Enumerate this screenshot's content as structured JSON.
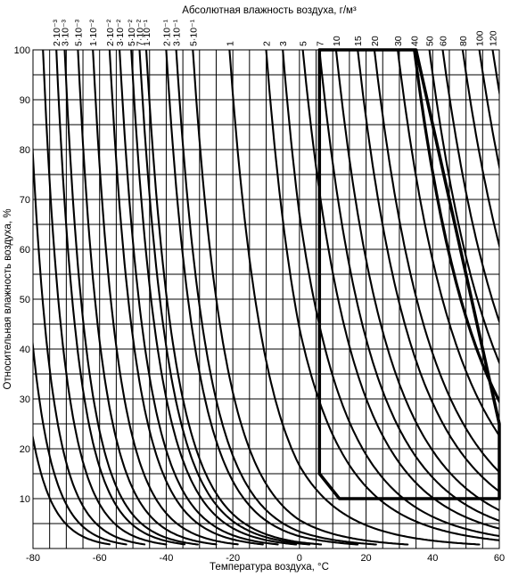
{
  "chart_data": {
    "type": "line",
    "title": "",
    "top_axis_label": "Абсолютная влажность воздуха, г/м³",
    "xlabel": "Температура воздуха, °C",
    "ylabel": "Относительная влажность воздуха, %",
    "xlim": [
      -80,
      60
    ],
    "ylim": [
      0,
      100
    ],
    "x_tick_labels": [
      "-80",
      "-60",
      "-40",
      "-20",
      "0",
      "20",
      "40",
      "60"
    ],
    "y_tick_labels": [
      "10",
      "20",
      "30",
      "40",
      "50",
      "60",
      "70",
      "80",
      "90",
      "100"
    ],
    "grid": true,
    "series_kind": "Constant absolute humidity isolines (g/m³)",
    "isolines": [
      {
        "label": "2·10⁻³",
        "value": 0.002,
        "x_at_100": -73
      },
      {
        "label": "3·10⁻³",
        "value": 0.003,
        "x_at_100": -70.5
      },
      {
        "label": "5·10⁻³",
        "value": 0.005,
        "x_at_100": -66.5
      },
      {
        "label": "1·10⁻²",
        "value": 0.01,
        "x_at_100": -62
      },
      {
        "label": "2·10⁻²",
        "value": 0.02,
        "x_at_100": -57
      },
      {
        "label": "3·10⁻²",
        "value": 0.03,
        "x_at_100": -54
      },
      {
        "label": "5·10⁻²",
        "value": 0.05,
        "x_at_100": -50.5
      },
      {
        "label": "7·10⁻²",
        "value": 0.07,
        "x_at_100": -48
      },
      {
        "label": "1·10⁻¹",
        "value": 0.1,
        "x_at_100": -46
      },
      {
        "label": "2·10⁻¹",
        "value": 0.2,
        "x_at_100": -40
      },
      {
        "label": "3·10⁻¹",
        "value": 0.3,
        "x_at_100": -37
      },
      {
        "label": "5·10⁻¹",
        "value": 0.5,
        "x_at_100": -32
      },
      {
        "label": "1",
        "value": 1,
        "x_at_100": -21
      },
      {
        "label": "2",
        "value": 2,
        "x_at_100": -10
      },
      {
        "label": "3",
        "value": 3,
        "x_at_100": -5
      },
      {
        "label": "5",
        "value": 5,
        "x_at_100": 1
      },
      {
        "label": "7",
        "value": 7,
        "x_at_100": 6
      },
      {
        "label": "10",
        "value": 10,
        "x_at_100": 11
      },
      {
        "label": "15",
        "value": 15,
        "x_at_100": 17.5
      },
      {
        "label": "20",
        "value": 20,
        "x_at_100": 22.5
      },
      {
        "label": "30",
        "value": 30,
        "x_at_100": 29.5
      },
      {
        "label": "40",
        "value": 40,
        "x_at_100": 34.5,
        "bold": true
      },
      {
        "label": "50",
        "value": 50,
        "x_at_100": 39
      },
      {
        "label": "60",
        "value": 60,
        "x_at_100": 43
      },
      {
        "label": "80",
        "value": 80,
        "x_at_100": 49
      },
      {
        "label": "100",
        "value": 100,
        "x_at_100": 54
      },
      {
        "label": "120",
        "value": 120,
        "x_at_100": 58
      }
    ],
    "region": {
      "description": "Outlined operating zone",
      "points": [
        [
          6,
          100
        ],
        [
          35,
          100
        ],
        [
          60,
          25
        ],
        [
          60,
          10
        ],
        [
          12,
          10
        ],
        [
          6,
          15
        ]
      ]
    }
  }
}
